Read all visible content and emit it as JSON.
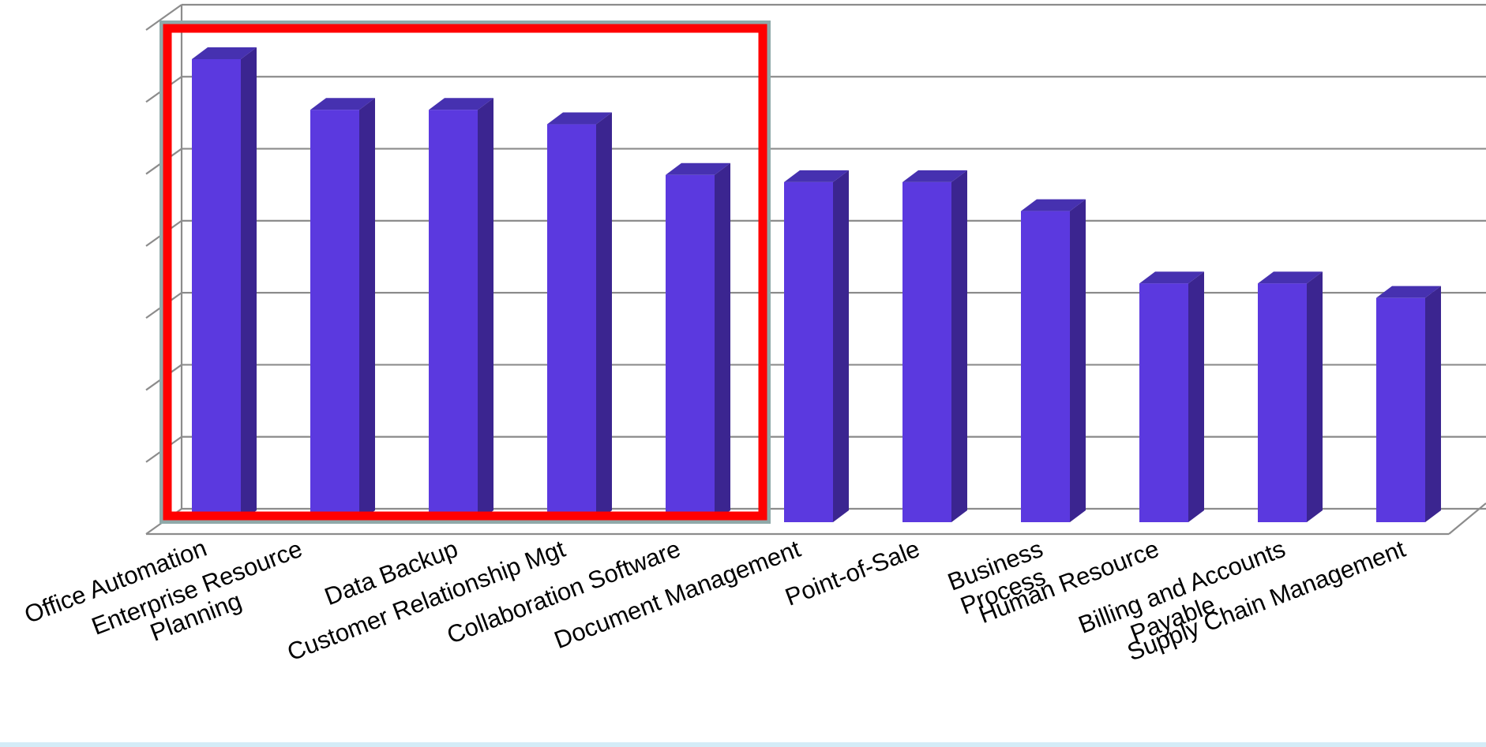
{
  "chart_data": {
    "type": "bar",
    "style": "3d-column",
    "categories": [
      [
        "Office Automation"
      ],
      [
        "Enterprise Resource",
        "Planning"
      ],
      [
        "Data Backup"
      ],
      [
        "Customer Relationship Mgt"
      ],
      [
        "Collaboration Software"
      ],
      [
        "Document Management"
      ],
      [
        "Point-of-Sale"
      ],
      [
        "Business",
        "Process"
      ],
      [
        "Human Resource"
      ],
      [
        "Billing and Accounts",
        "Payable"
      ],
      [
        "Supply Chain Management"
      ]
    ],
    "values": [
      64,
      57,
      57,
      55,
      48,
      47,
      47,
      43,
      33,
      33,
      31
    ],
    "ylim": [
      0,
      70
    ],
    "grid": true,
    "highlight": {
      "from_index": 0,
      "to_index": 4,
      "color": "#ff0000"
    },
    "colors": {
      "bar_front": "#5b39df",
      "bar_side": "#3b2590",
      "bar_top": "#4631b0",
      "grid": "#8c8c8c",
      "highlight_outer": "#8fa9a9"
    }
  }
}
